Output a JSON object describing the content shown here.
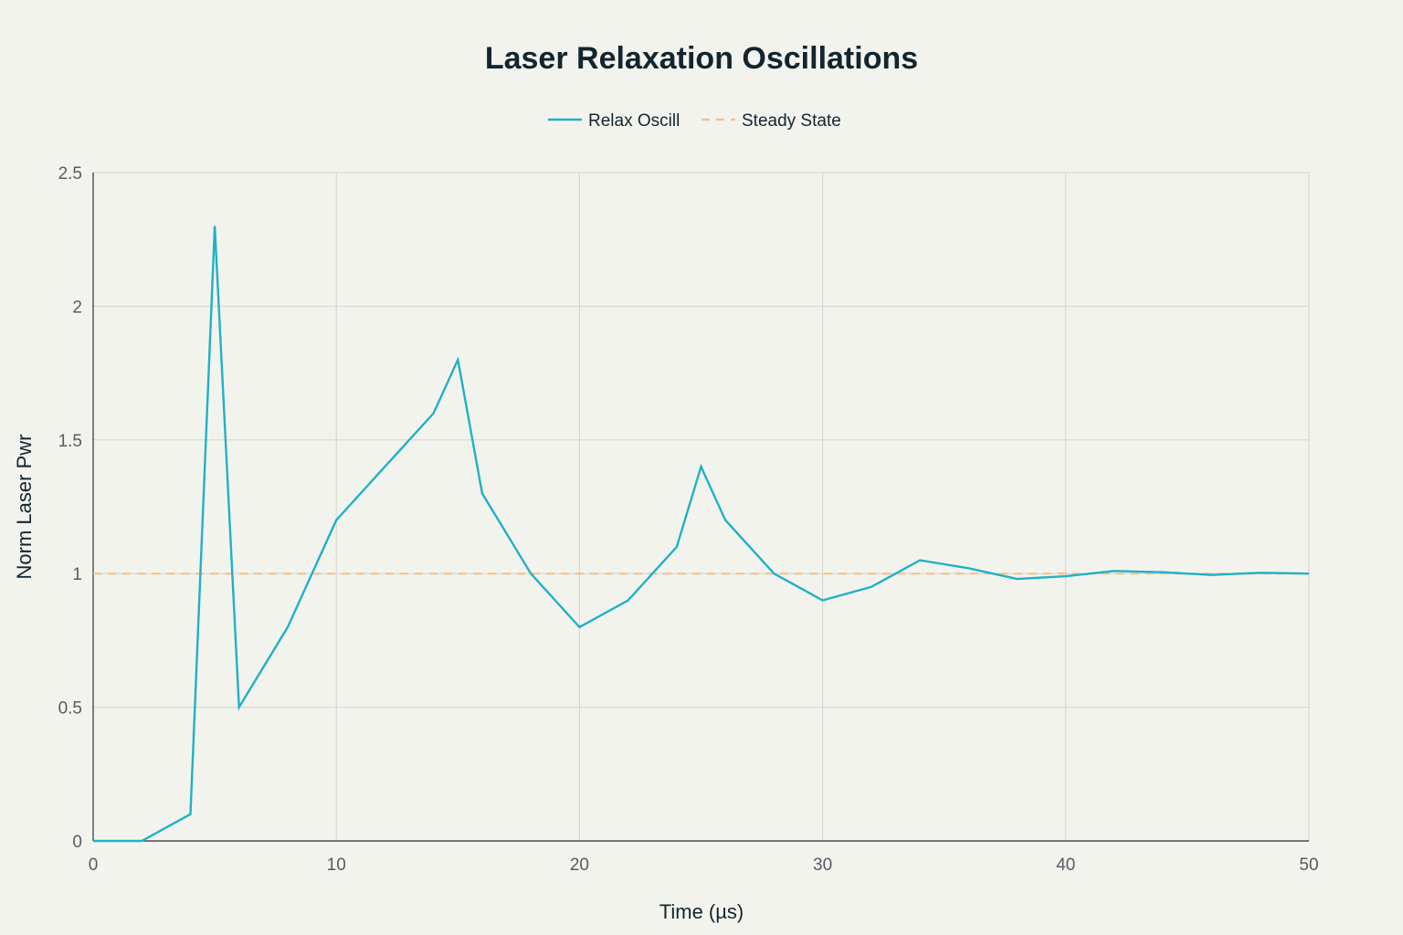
{
  "chart_data": {
    "type": "line",
    "title": "Laser Relaxation Oscillations",
    "xlabel": "Time (µs)",
    "ylabel": "Norm Laser Pwr",
    "xlim": [
      0,
      50
    ],
    "ylim": [
      0,
      2.5
    ],
    "x_ticks": [
      "0",
      "10",
      "20",
      "30",
      "40",
      "50"
    ],
    "y_ticks": [
      "0",
      "0.5",
      "1",
      "1.5",
      "2",
      "2.5"
    ],
    "grid": true,
    "legend_position": "top-center",
    "series": [
      {
        "name": "Relax Oscill",
        "color": "#1fb1c7",
        "style": "solid",
        "x": [
          0,
          2,
          4,
          5,
          6,
          8,
          10,
          12,
          14,
          15,
          16,
          18,
          20,
          22,
          24,
          25,
          26,
          28,
          30,
          32,
          34,
          36,
          38,
          40,
          42,
          44,
          46,
          48,
          50
        ],
        "y": [
          0,
          0,
          0.1,
          2.3,
          0.5,
          0.8,
          1.2,
          1.4,
          1.6,
          1.8,
          1.3,
          1.0,
          0.8,
          0.9,
          1.1,
          1.4,
          1.2,
          1.0,
          0.9,
          0.95,
          1.05,
          1.02,
          0.98,
          0.99,
          1.01,
          1.005,
          0.995,
          1.003,
          1.0
        ]
      },
      {
        "name": "Steady State",
        "color": "#f5c08a",
        "style": "dashed",
        "x": [
          0,
          50
        ],
        "y": [
          1,
          1
        ]
      }
    ]
  }
}
